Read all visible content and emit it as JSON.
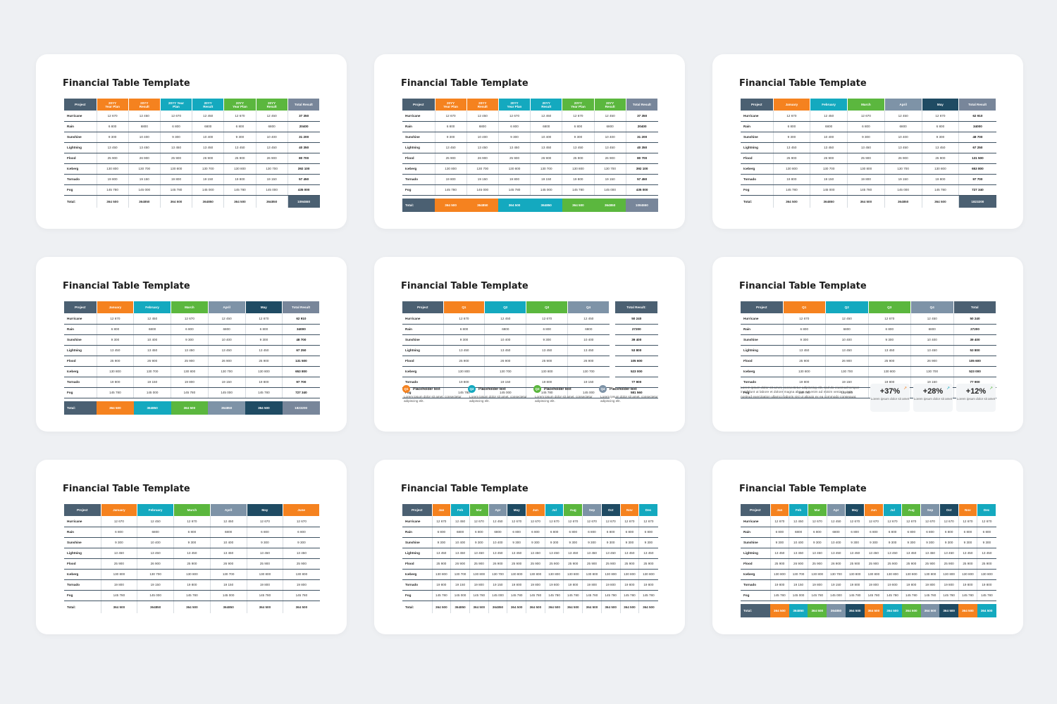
{
  "title": "Financial Table Template",
  "colors": {
    "dark": "#4b6072",
    "orange": "#f5821f",
    "teal": "#14a9bf",
    "green": "#5bb73e",
    "slate": "#7e93a7",
    "navy": "#1f4b63",
    "gray": "#78869a"
  },
  "rows": [
    "Hurricane",
    "Rain",
    "Sunshine",
    "Lightning",
    "Flood",
    "Iceberg",
    "Tornado",
    "Fog"
  ],
  "total_label": "Total:",
  "project_label": "Project",
  "slides": [
    {
      "key": "s1",
      "headers": [
        "20YY\nYear Plan",
        "20YY\nResult",
        "20YY Year\nPlan",
        "20YY\nResult",
        "20YY\nYear Plan",
        "20YY\nResult",
        "Total Result"
      ],
      "values": [
        [
          "12 670",
          "12 450",
          "12 670",
          "12 450",
          "12 670",
          "12 450",
          "37 350"
        ],
        [
          "6 800",
          "6800",
          "6 800",
          "6800",
          "6 800",
          "6800",
          "20400"
        ],
        [
          "9 300",
          "10 400",
          "9 300",
          "10 400",
          "9 300",
          "10 400",
          "31 200"
        ],
        [
          "13 450",
          "13 450",
          "13 450",
          "13 450",
          "13 450",
          "13 450",
          "40 350"
        ],
        [
          "25 900",
          "26 900",
          "25 900",
          "26 900",
          "25 900",
          "26 900",
          "80 700"
        ],
        [
          "130 800",
          "130 700",
          "130 800",
          "130 700",
          "130 800",
          "130 700",
          "392 100"
        ],
        [
          "19 800",
          "19 150",
          "19 800",
          "19 150",
          "19 800",
          "19 150",
          "57 450"
        ],
        [
          "145 780",
          "145 000",
          "145 780",
          "145 000",
          "145 780",
          "145 000",
          "435 000"
        ]
      ],
      "totals": [
        "364 500",
        "364850",
        "364 500",
        "364850",
        "364 500",
        "364850",
        "1094550"
      ]
    },
    {
      "key": "s2",
      "headers": [
        "20YY\nYear Plan",
        "20YY\nResult",
        "20YY\nYear Plan",
        "20YY\nResult",
        "20YY\nYear Plan",
        "20YY\nResult",
        "Total Result"
      ],
      "values": [
        [
          "12 670",
          "12 450",
          "12 670",
          "12 450",
          "12 670",
          "12 450",
          "37 350"
        ],
        [
          "6 800",
          "6800",
          "6 800",
          "6800",
          "6 800",
          "6800",
          "20400"
        ],
        [
          "9 300",
          "10 400",
          "9 300",
          "10 400",
          "9 300",
          "10 400",
          "31 200"
        ],
        [
          "13 450",
          "13 450",
          "13 450",
          "13 450",
          "13 450",
          "13 450",
          "40 350"
        ],
        [
          "25 900",
          "26 900",
          "25 900",
          "26 900",
          "25 900",
          "26 900",
          "80 700"
        ],
        [
          "130 800",
          "130 700",
          "130 800",
          "130 700",
          "130 800",
          "130 700",
          "392 100"
        ],
        [
          "19 800",
          "19 150",
          "19 800",
          "19 150",
          "19 800",
          "19 150",
          "57 450"
        ],
        [
          "145 780",
          "145 000",
          "145 780",
          "145 000",
          "145 780",
          "145 000",
          "435 000"
        ]
      ],
      "totals": [
        "364 500",
        "364850",
        "364 500",
        "364850",
        "364 500",
        "364850",
        "1094550"
      ]
    },
    {
      "key": "s3",
      "headers": [
        "January",
        "February",
        "March",
        "April",
        "May",
        "Total Result"
      ],
      "values": [
        [
          "12 670",
          "12 450",
          "12 670",
          "12 450",
          "12 670",
          "62 910"
        ],
        [
          "6 800",
          "6800",
          "6 800",
          "6800",
          "6 800",
          "34000"
        ],
        [
          "9 300",
          "10 400",
          "9 300",
          "10 400",
          "9 300",
          "48 700"
        ],
        [
          "13 450",
          "13 450",
          "13 450",
          "13 450",
          "13 450",
          "67 250"
        ],
        [
          "25 900",
          "26 900",
          "25 900",
          "26 900",
          "25 900",
          "131 500"
        ],
        [
          "130 800",
          "130 700",
          "130 800",
          "130 700",
          "130 800",
          "653 800"
        ],
        [
          "19 800",
          "19 150",
          "19 800",
          "19 150",
          "19 800",
          "97 700"
        ],
        [
          "145 780",
          "145 000",
          "145 780",
          "145 000",
          "145 780",
          "727 340"
        ]
      ],
      "totals": [
        "364 500",
        "364850",
        "364 500",
        "364850",
        "364 500",
        "1823200"
      ]
    },
    {
      "key": "s4",
      "headers": [
        "January",
        "February",
        "March",
        "April",
        "May",
        "Total Result"
      ],
      "values": [
        [
          "12 670",
          "12 450",
          "12 670",
          "12 450",
          "12 670",
          "62 910"
        ],
        [
          "6 800",
          "6800",
          "6 800",
          "6800",
          "6 800",
          "34000"
        ],
        [
          "9 300",
          "10 400",
          "9 300",
          "10 400",
          "9 300",
          "48 700"
        ],
        [
          "13 450",
          "13 450",
          "13 450",
          "13 450",
          "13 450",
          "67 250"
        ],
        [
          "25 900",
          "26 900",
          "25 900",
          "26 900",
          "25 900",
          "131 500"
        ],
        [
          "130 800",
          "130 700",
          "130 800",
          "130 700",
          "130 800",
          "653 800"
        ],
        [
          "19 800",
          "19 150",
          "19 800",
          "19 150",
          "19 800",
          "97 700"
        ],
        [
          "145 780",
          "145 000",
          "145 780",
          "145 000",
          "145 780",
          "727 340"
        ]
      ],
      "totals": [
        "364 500",
        "364850",
        "364 500",
        "364850",
        "364 500",
        "1823200"
      ]
    },
    {
      "key": "s5",
      "headers": [
        "Q1",
        "Q2",
        "Q3",
        "Q4"
      ],
      "side_header": "Total Result:",
      "values": [
        [
          "12 670",
          "12 450",
          "12 670",
          "12 450"
        ],
        [
          "6 800",
          "6800",
          "6 800",
          "6800"
        ],
        [
          "9 300",
          "10 400",
          "9 300",
          "10 400"
        ],
        [
          "13 450",
          "13 450",
          "13 450",
          "13 450"
        ],
        [
          "25 900",
          "26 900",
          "25 900",
          "26 900"
        ],
        [
          "130 800",
          "130 700",
          "130 800",
          "130 700"
        ],
        [
          "19 800",
          "19 150",
          "19 800",
          "19 150"
        ],
        [
          "145 780",
          "145 000",
          "145 780",
          "145 000"
        ]
      ],
      "side_values": [
        "50 240",
        "27200",
        "39 400",
        "53 800",
        "105 600",
        "523 000",
        "77 900",
        "581 560"
      ],
      "legend": [
        {
          "badge": "Q1",
          "title": "Placeholder text",
          "text": "Lorem ipsum dolor sit amet, consectetur adipiscing elit."
        },
        {
          "badge": "Q2",
          "title": "Placeholder text",
          "text": "Lorem ipsum dolor sit amet, consectetur adipiscing elit."
        },
        {
          "badge": "Q3",
          "title": "Placeholder text",
          "text": "Lorem ipsum dolor sit amet, consectetur adipiscing elit."
        },
        {
          "badge": "Q4",
          "title": "Placeholder text",
          "text": "Lorem ipsum dolor sit amet, consectetur adipiscing elit."
        }
      ]
    },
    {
      "key": "s6",
      "headers": [
        "Q1",
        "Q2",
        "Q3",
        "Q4",
        "Total"
      ],
      "values": [
        [
          "12 670",
          "12 450",
          "12 670",
          "12 450",
          "50 240"
        ],
        [
          "6 800",
          "6800",
          "6 800",
          "6800",
          "27200"
        ],
        [
          "9 300",
          "10 400",
          "9 300",
          "10 400",
          "39 400"
        ],
        [
          "13 450",
          "13 450",
          "13 450",
          "13 450",
          "53 800"
        ],
        [
          "25 900",
          "26 900",
          "25 900",
          "26 900",
          "105 600"
        ],
        [
          "130 800",
          "130 700",
          "130 800",
          "130 700",
          "523 000"
        ],
        [
          "19 800",
          "19 150",
          "19 800",
          "19 150",
          "77 900"
        ],
        [
          "145 780",
          "145 000",
          "145 780",
          "145 000",
          "581 560"
        ]
      ],
      "paragraph": "Lorem ipsum dolor sit amet, consectetur adipiscing elit, sed do eiusmod tempor incididunt ut labore et dolore magna aliqua. Ut enim ad minim veniam, quis nostrud exercitation ullamco laboris nisi ut aliquip ex ea commodo consequat.",
      "stats": [
        {
          "value": "+37%",
          "text": "Lorem ipsum dolor sit amet",
          "icon": "arrow-up-icon"
        },
        {
          "value": "+28%",
          "text": "Lorem ipsum dolor sit amet",
          "icon": "arrow-up-icon"
        },
        {
          "value": "+12%",
          "text": "Lorem ipsum dolor sit amet",
          "icon": "arrow-up-icon"
        }
      ]
    },
    {
      "key": "s7",
      "headers": [
        "January",
        "February",
        "March",
        "April",
        "May",
        "June"
      ],
      "values": [
        [
          "12 670",
          "12 450",
          "12 670",
          "12 450",
          "12 670",
          "12 670"
        ],
        [
          "6 800",
          "6800",
          "6 800",
          "6800",
          "6 800",
          "6 800"
        ],
        [
          "9 300",
          "10 400",
          "9 300",
          "10 400",
          "9 300",
          "9 300"
        ],
        [
          "13 450",
          "13 450",
          "13 450",
          "13 450",
          "13 450",
          "13 450"
        ],
        [
          "25 900",
          "26 900",
          "25 900",
          "26 900",
          "25 900",
          "25 900"
        ],
        [
          "130 800",
          "130 700",
          "130 800",
          "130 700",
          "130 800",
          "130 800"
        ],
        [
          "19 800",
          "19 150",
          "19 800",
          "19 150",
          "19 800",
          "19 800"
        ],
        [
          "145 780",
          "145 000",
          "145 780",
          "145 000",
          "145 780",
          "145 780"
        ]
      ],
      "totals": [
        "364 500",
        "364850",
        "364 500",
        "364850",
        "364 500",
        "364 500"
      ]
    },
    {
      "key": "s8",
      "headers": [
        "Jan",
        "Feb",
        "Mar",
        "Apr",
        "May",
        "Jun",
        "Jul",
        "Aug",
        "Sep",
        "Oct",
        "Nov",
        "Dec"
      ],
      "values": [
        [
          "12 670",
          "12 450",
          "12 670",
          "12 450",
          "12 670",
          "12 670",
          "12 670",
          "12 670",
          "12 670",
          "12 670",
          "12 670",
          "12 670"
        ],
        [
          "6 800",
          "6800",
          "6 800",
          "6800",
          "6 800",
          "6 800",
          "6 800",
          "6 800",
          "6 800",
          "6 800",
          "6 800",
          "6 800"
        ],
        [
          "9 300",
          "10 400",
          "9 300",
          "10 400",
          "9 300",
          "9 300",
          "9 300",
          "9 300",
          "9 300",
          "9 300",
          "9 300",
          "9 300"
        ],
        [
          "13 450",
          "13 450",
          "13 450",
          "13 450",
          "13 450",
          "13 450",
          "13 450",
          "13 450",
          "13 450",
          "13 450",
          "13 450",
          "13 450"
        ],
        [
          "25 900",
          "26 900",
          "25 900",
          "26 900",
          "25 900",
          "25 900",
          "25 900",
          "25 900",
          "25 900",
          "25 900",
          "25 900",
          "25 900"
        ],
        [
          "130 800",
          "130 700",
          "130 800",
          "130 700",
          "130 800",
          "130 800",
          "130 800",
          "130 800",
          "130 800",
          "130 800",
          "130 800",
          "130 800"
        ],
        [
          "19 800",
          "19 150",
          "19 800",
          "19 150",
          "19 800",
          "19 800",
          "19 800",
          "19 800",
          "19 800",
          "19 800",
          "19 800",
          "19 800"
        ],
        [
          "145 780",
          "145 000",
          "145 780",
          "145 000",
          "145 780",
          "145 780",
          "145 780",
          "145 780",
          "145 780",
          "145 780",
          "145 780",
          "145 780"
        ]
      ],
      "totals": [
        "364 500",
        "364850",
        "364 500",
        "364850",
        "364 500",
        "364 500",
        "364 500",
        "364 500",
        "364 500",
        "364 500",
        "364 500",
        "364 500"
      ]
    },
    {
      "key": "s9",
      "headers": [
        "Jan",
        "Feb",
        "Mar",
        "Apr",
        "May",
        "Jun",
        "Jul",
        "Aug",
        "Sep",
        "Oct",
        "Nov",
        "Dec"
      ],
      "values": [
        [
          "12 670",
          "12 450",
          "12 670",
          "12 450",
          "12 670",
          "12 670",
          "12 670",
          "12 670",
          "12 670",
          "12 670",
          "12 670",
          "12 670"
        ],
        [
          "6 800",
          "6800",
          "6 800",
          "6800",
          "6 800",
          "6 800",
          "6 800",
          "6 800",
          "6 800",
          "6 800",
          "6 800",
          "6 800"
        ],
        [
          "9 300",
          "10 400",
          "9 300",
          "10 400",
          "9 300",
          "9 300",
          "9 300",
          "9 300",
          "9 300",
          "9 300",
          "9 300",
          "9 300"
        ],
        [
          "13 450",
          "13 450",
          "13 450",
          "13 450",
          "13 450",
          "13 450",
          "13 450",
          "13 450",
          "13 450",
          "13 450",
          "13 450",
          "13 450"
        ],
        [
          "25 900",
          "26 900",
          "25 900",
          "26 900",
          "25 900",
          "25 900",
          "25 900",
          "25 900",
          "25 900",
          "25 900",
          "25 900",
          "25 900"
        ],
        [
          "130 800",
          "130 700",
          "130 800",
          "130 700",
          "130 800",
          "130 800",
          "130 800",
          "130 800",
          "130 800",
          "130 800",
          "130 800",
          "130 800"
        ],
        [
          "19 800",
          "19 150",
          "19 800",
          "19 150",
          "19 800",
          "19 800",
          "19 800",
          "19 800",
          "19 800",
          "19 800",
          "19 800",
          "19 800"
        ],
        [
          "145 780",
          "145 000",
          "145 780",
          "145 000",
          "145 780",
          "145 780",
          "145 780",
          "145 780",
          "145 780",
          "145 780",
          "145 780",
          "145 780"
        ]
      ],
      "totals": [
        "364 500",
        "364850",
        "364 500",
        "364850",
        "364 500",
        "364 500",
        "364 500",
        "364 500",
        "364 500",
        "364 500",
        "364 500",
        "364 500"
      ]
    }
  ]
}
